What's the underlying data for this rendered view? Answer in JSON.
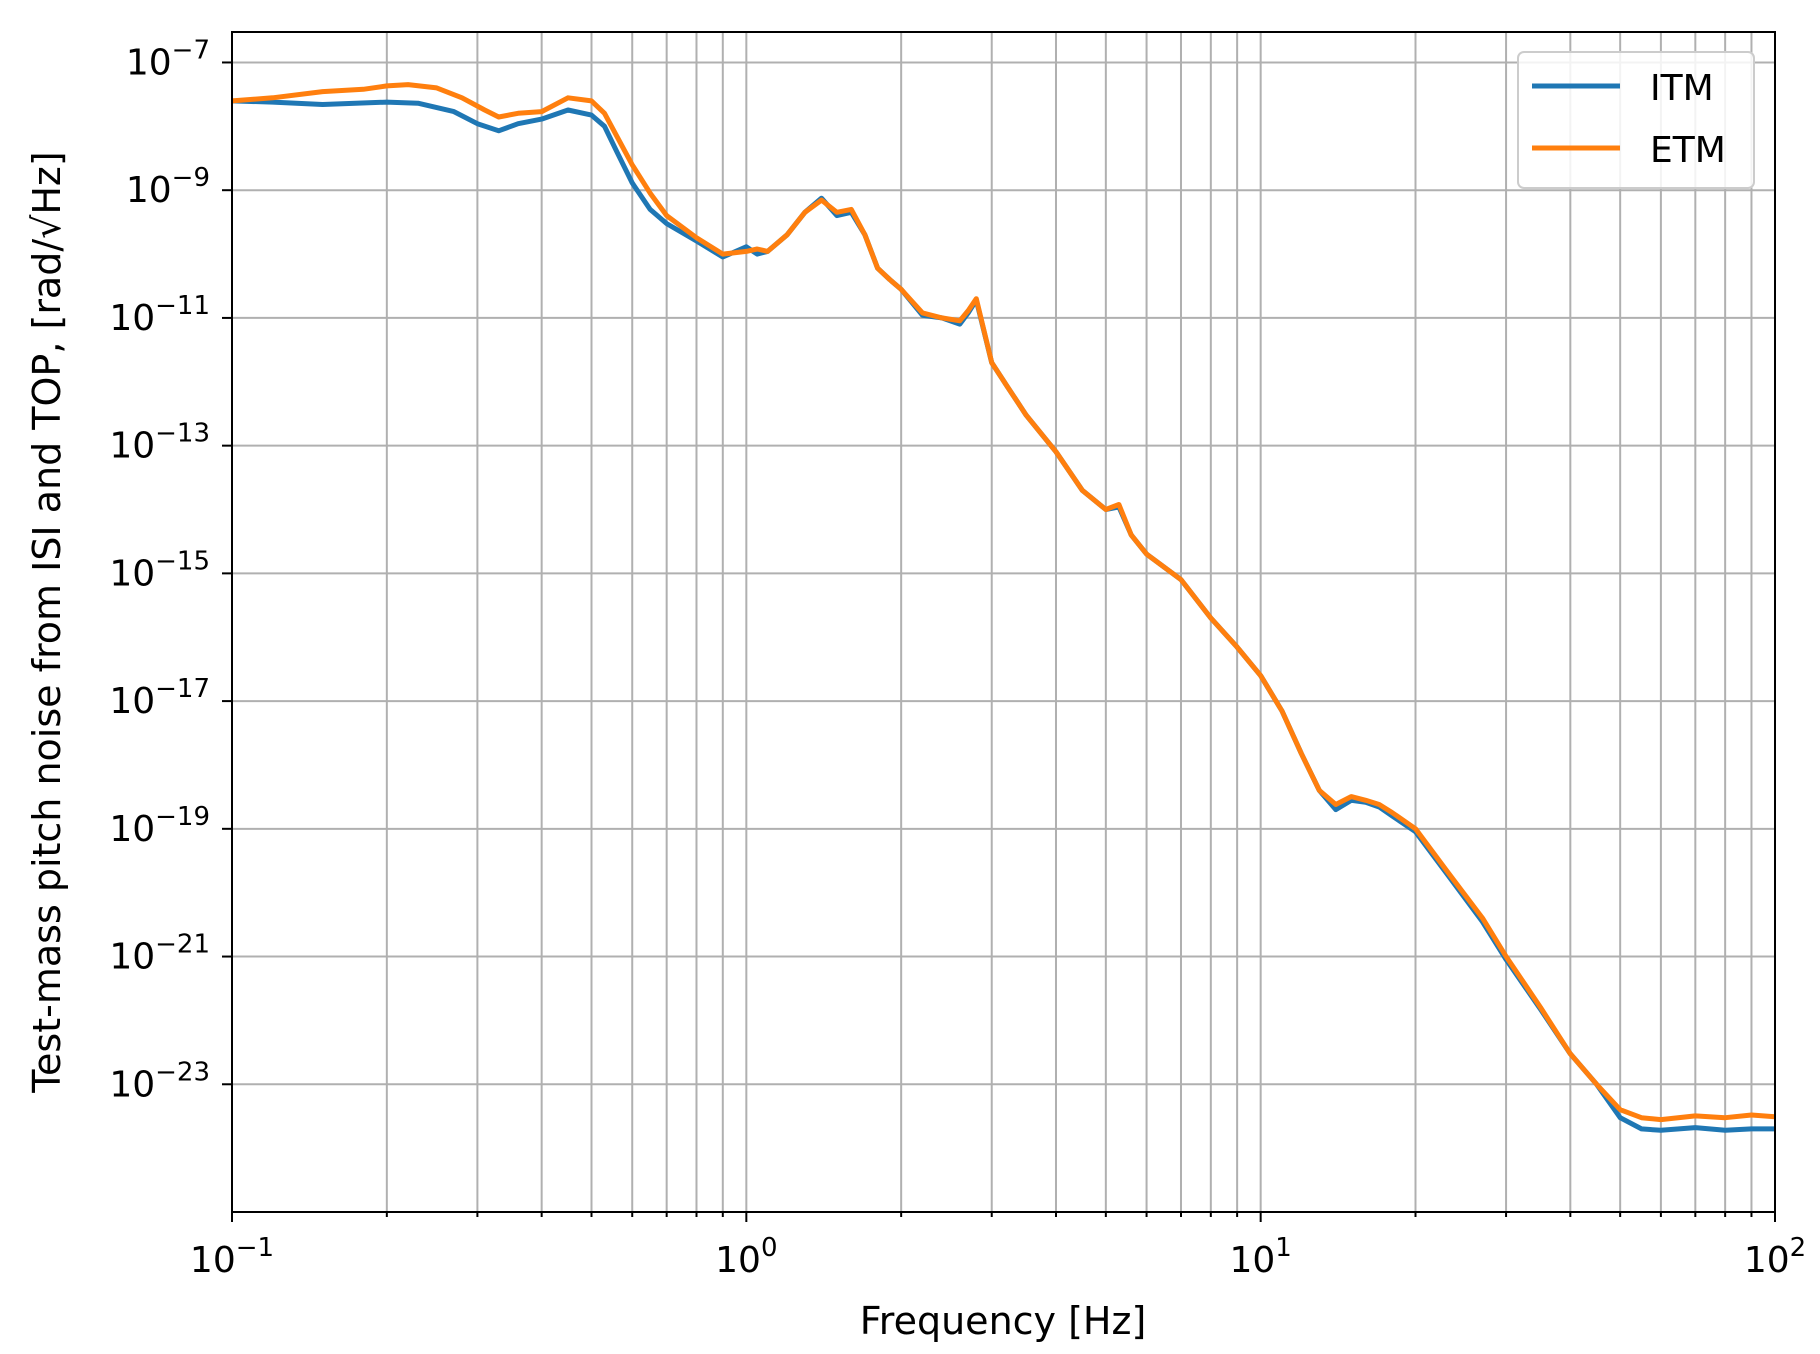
{
  "chart_data": {
    "type": "line",
    "xlabel": "Frequency [Hz]",
    "ylabel": "Test-mass pitch noise from ISI and TOP, [rad/√Hz]",
    "x_scale": "log",
    "y_scale": "log",
    "xlim": [
      0.1,
      100
    ],
    "ylim": [
      1e-25,
      3e-07
    ],
    "grid": "major and minor",
    "legend_position": "top-right",
    "x_ticks": [
      {
        "value": 0.1,
        "base": "10",
        "exp": "−1"
      },
      {
        "value": 1,
        "base": "10",
        "exp": "0"
      },
      {
        "value": 10,
        "base": "10",
        "exp": "1"
      },
      {
        "value": 100,
        "base": "10",
        "exp": "2"
      }
    ],
    "y_ticks": [
      {
        "value": 1e-23,
        "base": "10",
        "exp": "−23"
      },
      {
        "value": 1e-21,
        "base": "10",
        "exp": "−21"
      },
      {
        "value": 1e-19,
        "base": "10",
        "exp": "−19"
      },
      {
        "value": 1e-17,
        "base": "10",
        "exp": "−17"
      },
      {
        "value": 1e-15,
        "base": "10",
        "exp": "−15"
      },
      {
        "value": 1e-13,
        "base": "10",
        "exp": "−13"
      },
      {
        "value": 1e-11,
        "base": "10",
        "exp": "−11"
      },
      {
        "value": 1e-09,
        "base": "10",
        "exp": "−9"
      },
      {
        "value": 1e-07,
        "base": "10",
        "exp": "−7"
      }
    ],
    "series": [
      {
        "name": "ITM",
        "color": "#1f77b4",
        "x": [
          0.1,
          0.12,
          0.15,
          0.2,
          0.23,
          0.27,
          0.3,
          0.33,
          0.36,
          0.4,
          0.45,
          0.5,
          0.53,
          0.56,
          0.6,
          0.65,
          0.7,
          0.8,
          0.9,
          1.0,
          1.05,
          1.1,
          1.2,
          1.3,
          1.4,
          1.5,
          1.6,
          1.7,
          1.8,
          1.9,
          2.0,
          2.2,
          2.4,
          2.6,
          2.7,
          2.8,
          3.0,
          3.2,
          3.5,
          4.0,
          4.5,
          5.0,
          5.3,
          5.6,
          6.0,
          7.0,
          8.0,
          9.0,
          10.0,
          11.0,
          12.0,
          13.0,
          14.0,
          15.0,
          16.0,
          17.0,
          18.0,
          20.0,
          23.0,
          27.0,
          30.0,
          35.0,
          40.0,
          45.0,
          50.0,
          55.0,
          60.0,
          70.0,
          80.0,
          90.0,
          100.0
        ],
        "y": [
          2.5e-08,
          2.4e-08,
          2.2e-08,
          2.4e-08,
          2.3e-08,
          1.7e-08,
          1.1e-08,
          8.5e-09,
          1.1e-08,
          1.3e-08,
          1.8e-08,
          1.5e-08,
          1e-08,
          4e-09,
          1.3e-09,
          5e-10,
          3e-10,
          1.6e-10,
          9e-11,
          1.3e-10,
          1e-10,
          1.1e-10,
          2e-10,
          4.5e-10,
          7.5e-10,
          4e-10,
          4.5e-10,
          2e-10,
          6e-11,
          4e-11,
          2.8e-11,
          1.1e-11,
          1e-11,
          8e-12,
          1.2e-11,
          1.9e-11,
          2e-12,
          9e-13,
          3e-13,
          8e-14,
          2e-14,
          1e-14,
          1.1e-14,
          4e-15,
          2e-15,
          8e-16,
          2e-16,
          7e-17,
          2.5e-17,
          7e-18,
          1.5e-18,
          4e-19,
          2e-19,
          2.8e-19,
          2.6e-19,
          2.2e-19,
          1.6e-19,
          9e-20,
          2e-20,
          3.5e-21,
          9e-22,
          1.5e-22,
          3e-23,
          1e-23,
          3e-24,
          2e-24,
          1.9e-24,
          2.1e-24,
          1.9e-24,
          2e-24,
          2e-24
        ]
      },
      {
        "name": "ETM",
        "color": "#ff7f0e",
        "x": [
          0.1,
          0.12,
          0.15,
          0.18,
          0.2,
          0.22,
          0.25,
          0.28,
          0.31,
          0.33,
          0.36,
          0.4,
          0.45,
          0.5,
          0.53,
          0.56,
          0.6,
          0.65,
          0.7,
          0.8,
          0.9,
          1.0,
          1.05,
          1.1,
          1.2,
          1.3,
          1.4,
          1.5,
          1.6,
          1.7,
          1.8,
          1.9,
          2.0,
          2.2,
          2.4,
          2.6,
          2.7,
          2.8,
          3.0,
          3.2,
          3.5,
          4.0,
          4.5,
          5.0,
          5.3,
          5.6,
          6.0,
          7.0,
          8.0,
          9.0,
          10.0,
          11.0,
          12.0,
          13.0,
          14.0,
          15.0,
          16.0,
          17.0,
          18.0,
          20.0,
          23.0,
          27.0,
          30.0,
          35.0,
          40.0,
          45.0,
          50.0,
          55.0,
          60.0,
          70.0,
          80.0,
          90.0,
          100.0
        ],
        "y": [
          2.5e-08,
          2.8e-08,
          3.5e-08,
          3.8e-08,
          4.3e-08,
          4.5e-08,
          4e-08,
          2.8e-08,
          1.8e-08,
          1.4e-08,
          1.6e-08,
          1.7e-08,
          2.8e-08,
          2.5e-08,
          1.6e-08,
          7e-09,
          2.5e-09,
          9e-10,
          4e-10,
          1.8e-10,
          1e-10,
          1.1e-10,
          1.2e-10,
          1.1e-10,
          2e-10,
          4.5e-10,
          7e-10,
          4.5e-10,
          5e-10,
          2e-10,
          6e-11,
          4e-11,
          2.8e-11,
          1.2e-11,
          1e-11,
          9e-12,
          1.3e-11,
          2e-11,
          2e-12,
          9e-13,
          3e-13,
          8e-14,
          2e-14,
          1e-14,
          1.2e-14,
          4e-15,
          2e-15,
          8e-16,
          2e-16,
          7e-17,
          2.5e-17,
          7e-18,
          1.5e-18,
          4e-19,
          2.4e-19,
          3.2e-19,
          2.8e-19,
          2.4e-19,
          1.8e-19,
          1e-19,
          2.2e-20,
          4e-21,
          1e-21,
          1.6e-22,
          3e-23,
          1e-23,
          4e-24,
          3e-24,
          2.8e-24,
          3.2e-24,
          3e-24,
          3.3e-24,
          3.1e-24
        ]
      }
    ]
  }
}
